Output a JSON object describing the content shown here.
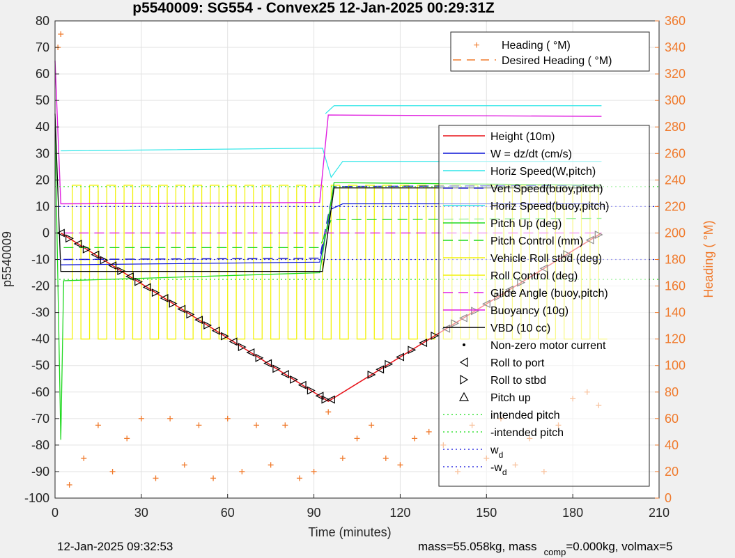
{
  "title": "p5540009: SG554 - Convex25 12-Jan-2025 00:29:31Z",
  "footer": {
    "timestamp": "12-Jan-2025 09:32:53",
    "mass_a": "mass=55.058kg, mass",
    "mass_sub": "comp",
    "mass_b": "=0.000kg, volmax=5"
  },
  "colors": {
    "heading": "#f07a2c",
    "height": "#e8131a",
    "w": "#0a14d8",
    "horiz": "#2fe6e8",
    "vert": "#1d1dc9",
    "pitch": "#1ed81e",
    "yellow": "#f2f20c",
    "buoy": "#e01ee0",
    "vbd": "#000000",
    "intended": "#3ae23a",
    "wd": "#3030e0"
  },
  "chart_data": {
    "type": "line",
    "xlabel": "Time (minutes)",
    "ylabel": "p5540009",
    "y2label": "Heading (  °M)",
    "xlim": [
      0,
      210
    ],
    "ylim": [
      -100,
      80
    ],
    "y2lim": [
      0,
      360
    ],
    "xticks": [
      "0",
      "30",
      "60",
      "90",
      "120",
      "150",
      "180",
      "210"
    ],
    "yticks": [
      "80",
      "70",
      "60",
      "50",
      "40",
      "30",
      "20",
      "10",
      "0",
      "-10",
      "-20",
      "-30",
      "-40",
      "-50",
      "-60",
      "-70",
      "-80",
      "-90",
      "-100"
    ],
    "y2ticks": [
      "360",
      "340",
      "320",
      "300",
      "280",
      "260",
      "240",
      "220",
      "200",
      "180",
      "160",
      "140",
      "120",
      "100",
      "80",
      "60",
      "40",
      "20",
      "0"
    ],
    "grid": true,
    "legend_heading": [
      "Heading (  °M)",
      "Desired Heading (    °M)"
    ],
    "legend_main": [
      "Height (10m)",
      "W = dz/dt (cm/s)",
      "Horiz Speed(W,pitch)",
      "Vert Speed(buoy,pitch)",
      "Horiz Speed(buoy,pitch)",
      "Pitch Up (deg)",
      "Pitch Control (mm)",
      "Vehicle Roll stbd (deg)",
      "Roll Control (deg)",
      "Glide Angle (buoy,pitch)",
      "Buoyancy (10g)",
      "VBD (10 cc)",
      "Non-zero motor current",
      "Roll to port",
      "Roll to stbd",
      "Pitch up",
      "intended pitch",
      "-intended pitch"
    ],
    "legend_wd": "w",
    "legend_wd_sub": "d",
    "legend_negwd": "-w",
    "legend_negwd_sub": "d",
    "series": [
      {
        "name": "Height (10m)",
        "x": [
          2,
          95,
          190
        ],
        "y": [
          0,
          -63.5,
          0
        ]
      },
      {
        "name": "W = dz/dt (cm/s)",
        "x": [
          2,
          3,
          92,
          96,
          100,
          190
        ],
        "y": [
          -12,
          -12,
          -11,
          9,
          11,
          11
        ]
      },
      {
        "name": "Horiz Speed(W,pitch)",
        "x": [
          2,
          3,
          93,
          96,
          100,
          190
        ],
        "y": [
          31,
          31,
          32,
          21,
          27,
          27
        ]
      },
      {
        "name": "Vert Speed(buoy,pitch)",
        "x": [
          3,
          92,
          97,
          190
        ],
        "y": [
          -10,
          -9.5,
          17.5,
          18
        ]
      },
      {
        "name": "Horiz Speed(buoy,pitch)",
        "x": [
          94,
          97,
          190
        ],
        "y": [
          45,
          48,
          48
        ]
      },
      {
        "name": "Pitch Up (deg)",
        "x": [
          0,
          2,
          3,
          92,
          97,
          190
        ],
        "y": [
          40,
          -78,
          -18,
          -15,
          19,
          18
        ]
      },
      {
        "name": "Pitch Control (mm)",
        "x": [
          3,
          92,
          96,
          190
        ],
        "y": [
          -5.5,
          -5.5,
          5,
          5.5
        ]
      },
      {
        "name": "Glide Angle (buoy,pitch)",
        "x": [
          3,
          92,
          96,
          190
        ],
        "y": [
          0,
          0,
          0,
          0
        ]
      },
      {
        "name": "Buoyancy (10g)",
        "x": [
          0,
          2,
          92,
          95,
          190
        ],
        "y": [
          65,
          11,
          11.5,
          44.5,
          44
        ]
      },
      {
        "name": "VBD (10 cc)",
        "x": [
          0,
          2,
          93,
          97,
          190
        ],
        "y": [
          45,
          -14.5,
          -14.5,
          17,
          17
        ]
      },
      {
        "name": "intended pitch",
        "x": [
          0,
          210
        ],
        "y": [
          17.5,
          17.5
        ]
      },
      {
        "name": "-intended pitch",
        "x": [
          0,
          210
        ],
        "y": [
          -17.5,
          -17.5
        ]
      },
      {
        "name": "w",
        "x": [
          0,
          210
        ],
        "y": [
          10,
          10
        ]
      },
      {
        "name": "-w",
        "x": [
          0,
          210
        ],
        "y": [
          -10,
          -10
        ]
      }
    ],
    "roll_markers": {
      "x": [
        2,
        5,
        8,
        11,
        14,
        17,
        20,
        23,
        26,
        29,
        32,
        35,
        38,
        41,
        44,
        47,
        50,
        53,
        56,
        59,
        62,
        65,
        68,
        71,
        74,
        77,
        80,
        83,
        86,
        89,
        92,
        94,
        96,
        110,
        113,
        116,
        120,
        124,
        128,
        132,
        136,
        139,
        142,
        146,
        150,
        154,
        158,
        162,
        170,
        178,
        186,
        189
      ]
    },
    "heading_samples": [
      [
        1,
        340
      ],
      [
        2,
        350
      ],
      [
        5,
        10
      ],
      [
        10,
        30
      ],
      [
        15,
        55
      ],
      [
        20,
        20
      ],
      [
        25,
        45
      ],
      [
        30,
        60
      ],
      [
        35,
        15
      ],
      [
        40,
        60
      ],
      [
        45,
        25
      ],
      [
        50,
        55
      ],
      [
        55,
        15
      ],
      [
        60,
        60
      ],
      [
        65,
        20
      ],
      [
        70,
        55
      ],
      [
        75,
        25
      ],
      [
        80,
        55
      ],
      [
        85,
        15
      ],
      [
        90,
        20
      ],
      [
        95,
        65
      ],
      [
        100,
        30
      ],
      [
        105,
        45
      ],
      [
        110,
        55
      ],
      [
        115,
        30
      ],
      [
        120,
        25
      ],
      [
        125,
        45
      ],
      [
        130,
        50
      ],
      [
        135,
        40
      ],
      [
        140,
        20
      ],
      [
        145,
        55
      ],
      [
        150,
        30
      ],
      [
        155,
        60
      ],
      [
        160,
        25
      ],
      [
        165,
        45
      ],
      [
        170,
        20
      ],
      [
        175,
        55
      ],
      [
        180,
        75
      ],
      [
        185,
        80
      ],
      [
        189,
        70
      ]
    ]
  }
}
